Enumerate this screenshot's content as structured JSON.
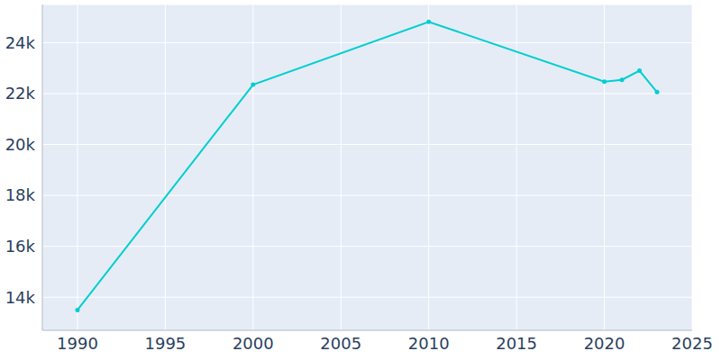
{
  "chart_data": {
    "type": "line",
    "x": [
      1990,
      2000,
      2010,
      2020,
      2021,
      2022,
      2023
    ],
    "values": [
      13500,
      22350,
      24820,
      22470,
      22540,
      22900,
      22060
    ],
    "color": "#00CED1",
    "marker": "circle",
    "xlim": [
      1988,
      2025
    ],
    "xticks": [
      1990,
      1995,
      2000,
      2005,
      2010,
      2015,
      2020,
      2025
    ],
    "ylim": [
      12700,
      25500
    ],
    "yticks": [
      {
        "value": 14000,
        "label": "14k"
      },
      {
        "value": 16000,
        "label": "16k"
      },
      {
        "value": 18000,
        "label": "18k"
      },
      {
        "value": 20000,
        "label": "20k"
      },
      {
        "value": 22000,
        "label": "22k"
      },
      {
        "value": 24000,
        "label": "24k"
      }
    ],
    "grid": true
  }
}
